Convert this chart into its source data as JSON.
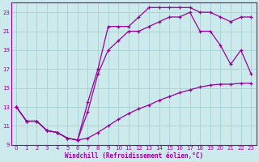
{
  "bg_color": "#cce9ec",
  "grid_color": "#aad4d8",
  "line_color": "#990099",
  "marker": "+",
  "xlabel": "Windchill (Refroidissement éolien,°C)",
  "xlim": [
    -0.5,
    23.5
  ],
  "ylim": [
    9,
    24
  ],
  "yticks": [
    9,
    11,
    13,
    15,
    17,
    19,
    21,
    23
  ],
  "xticks": [
    0,
    1,
    2,
    3,
    4,
    5,
    6,
    7,
    8,
    9,
    10,
    11,
    12,
    13,
    14,
    15,
    16,
    17,
    18,
    19,
    20,
    21,
    22,
    23
  ],
  "curve1_x": [
    0,
    1,
    2,
    3,
    4,
    5,
    6,
    7,
    8,
    9,
    10,
    11,
    12,
    13,
    14,
    15,
    16,
    17,
    18,
    19,
    20,
    21,
    22,
    23
  ],
  "curve1_y": [
    13.0,
    11.5,
    11.5,
    10.5,
    10.3,
    9.7,
    9.5,
    9.7,
    10.3,
    11.0,
    11.7,
    12.3,
    12.8,
    13.2,
    13.7,
    14.1,
    14.5,
    14.8,
    15.1,
    15.3,
    15.4,
    15.4,
    15.5,
    15.5
  ],
  "curve2_x": [
    0,
    1,
    2,
    3,
    4,
    5,
    6,
    7,
    8,
    9,
    10,
    11,
    12,
    13,
    14,
    15,
    16,
    17,
    18,
    19,
    20,
    21,
    22,
    23
  ],
  "curve2_y": [
    13.0,
    11.5,
    11.5,
    10.5,
    10.3,
    9.7,
    9.5,
    12.5,
    16.5,
    19.0,
    20.0,
    21.0,
    21.0,
    21.5,
    22.0,
    22.5,
    22.5,
    23.0,
    21.0,
    21.0,
    19.5,
    17.5,
    19.0,
    16.5
  ],
  "curve3_x": [
    0,
    1,
    2,
    3,
    4,
    5,
    6,
    7,
    8,
    9,
    10,
    11,
    12,
    13,
    14,
    15,
    16,
    17,
    18,
    19,
    20,
    21,
    22,
    23
  ],
  "curve3_y": [
    13.0,
    11.5,
    11.5,
    10.5,
    10.3,
    9.7,
    9.5,
    13.5,
    17.0,
    21.5,
    21.5,
    21.5,
    22.5,
    23.5,
    23.5,
    23.5,
    23.5,
    23.5,
    23.0,
    23.0,
    22.5,
    22.0,
    22.5,
    22.5
  ]
}
